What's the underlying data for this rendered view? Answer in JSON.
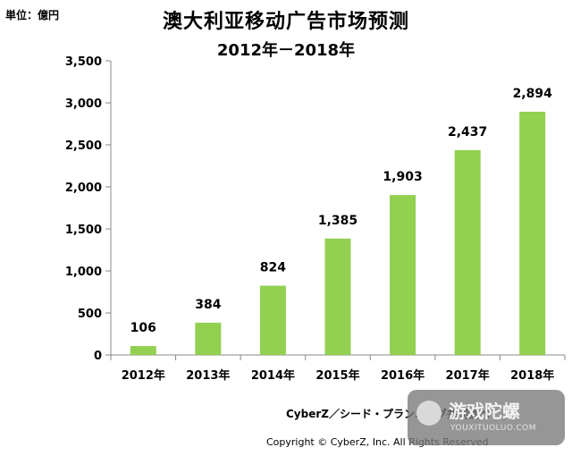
{
  "header": {
    "unit_label": "単位：億円",
    "title": "澳大利亚移动广告市场预测",
    "subtitle": "2012年－2018年"
  },
  "footer": {
    "credit": "CyberZ／シード・プランニング共同調べ",
    "copyright": "Copyright © CyberZ, Inc. All Rights Reserved"
  },
  "watermark": {
    "name": "游戏陀螺",
    "url": "YOUXITUOLUO.COM"
  },
  "colors": {
    "bar": "#92d050",
    "axis": "#888888",
    "text": "#000000"
  },
  "chart_data": {
    "type": "bar",
    "title": "澳大利亚移动广告市场预测",
    "subtitle": "2012年－2018年",
    "ylabel": "単位：億円",
    "xlabel": "",
    "categories": [
      "2012年",
      "2013年",
      "2014年",
      "2015年",
      "2016年",
      "2017年",
      "2018年"
    ],
    "values": [
      106,
      384,
      824,
      1385,
      1903,
      2437,
      2894
    ],
    "value_labels": [
      "106",
      "384",
      "824",
      "1,385",
      "1,903",
      "2,437",
      "2,894"
    ],
    "ylim": [
      0,
      3500
    ],
    "yticks": [
      0,
      500,
      1000,
      1500,
      2000,
      2500,
      3000,
      3500
    ],
    "ytick_labels": [
      "0",
      "500",
      "1,000",
      "1,500",
      "2,000",
      "2,500",
      "3,000",
      "3,500"
    ],
    "grid": false,
    "legend": "none"
  }
}
